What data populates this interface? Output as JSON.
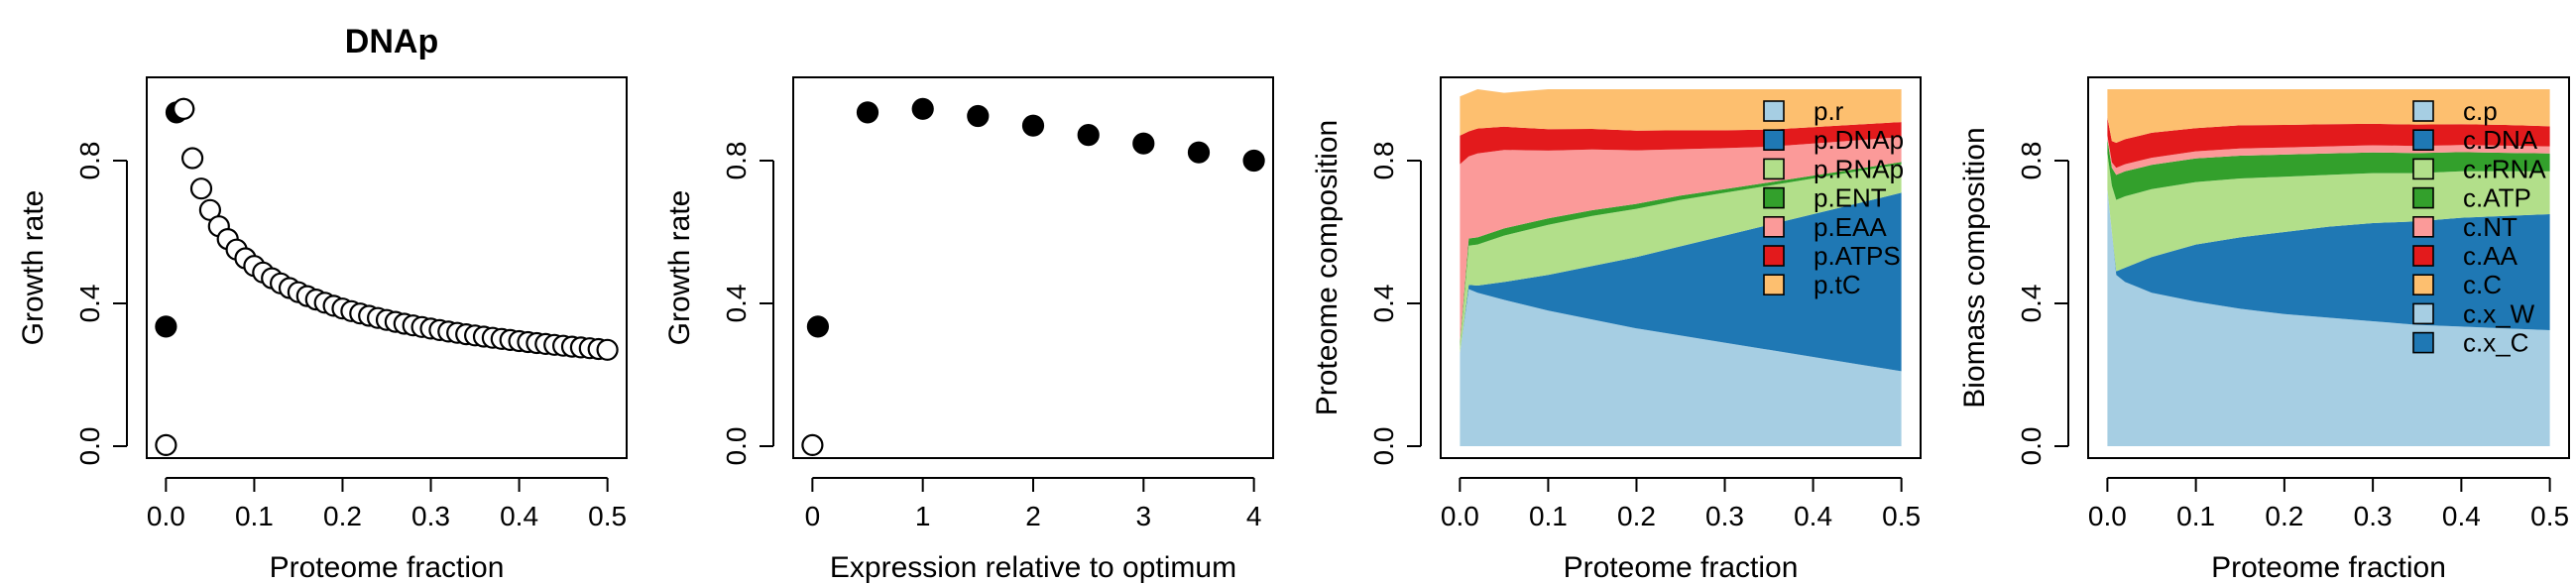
{
  "figure_title": "DNAp",
  "chart_data": [
    {
      "type": "scatter",
      "xlabel": "Proteome fraction",
      "ylabel": "Growth rate",
      "xlim": [
        0,
        0.5
      ],
      "ylim": [
        0,
        1
      ],
      "xticks": [
        "0.0",
        "0.1",
        "0.2",
        "0.3",
        "0.4",
        "0.5"
      ],
      "yticks": [
        "0.0",
        "0.4",
        "0.8"
      ],
      "series": [
        {
          "marker": "filled",
          "points": [
            [
              0.0,
              0.335
            ],
            [
              0.012,
              0.935
            ],
            [
              0.02,
              0.945
            ]
          ]
        },
        {
          "marker": "open",
          "points": [
            [
              0.0,
              0.003
            ]
          ]
        },
        {
          "marker": "open-curve",
          "x_from": 0.02,
          "x_to": 0.5,
          "count": 49,
          "y_start": 0.945,
          "y_end": 0.27
        }
      ]
    },
    {
      "type": "scatter",
      "xlabel": "Expression relative to optimum",
      "ylabel": "Growth rate",
      "xlim": [
        0,
        4
      ],
      "ylim": [
        0,
        1
      ],
      "xticks": [
        "0",
        "1",
        "2",
        "3",
        "4"
      ],
      "yticks": [
        "0.0",
        "0.4",
        "0.8"
      ],
      "series": [
        {
          "marker": "filled",
          "points": [
            [
              0.05,
              0.335
            ],
            [
              0.5,
              0.935
            ],
            [
              1.0,
              0.945
            ],
            [
              1.5,
              0.925
            ],
            [
              2.0,
              0.898
            ],
            [
              2.5,
              0.872
            ],
            [
              3.0,
              0.848
            ],
            [
              3.5,
              0.823
            ],
            [
              4.0,
              0.8
            ]
          ]
        },
        {
          "marker": "open",
          "points": [
            [
              0.0,
              0.003
            ]
          ]
        }
      ]
    },
    {
      "type": "area",
      "xlabel": "Proteome fraction",
      "ylabel": "Proteome composition",
      "xlim": [
        0,
        0.5
      ],
      "ylim": [
        0,
        1
      ],
      "xticks": [
        "0.0",
        "0.1",
        "0.2",
        "0.3",
        "0.4",
        "0.5"
      ],
      "yticks": [
        "0.0",
        "0.4",
        "0.8"
      ],
      "x": [
        0,
        0.01,
        0.02,
        0.05,
        0.1,
        0.15,
        0.2,
        0.25,
        0.3,
        0.35,
        0.4,
        0.45,
        0.5
      ],
      "series": [
        {
          "name": "p.r",
          "color": "#a6cee3",
          "values": [
            0.26,
            0.44,
            0.43,
            0.41,
            0.38,
            0.355,
            0.33,
            0.31,
            0.29,
            0.27,
            0.25,
            0.23,
            0.21
          ]
        },
        {
          "name": "p.DNAp",
          "color": "#1f78b4",
          "values": [
            0,
            0.012,
            0.02,
            0.05,
            0.1,
            0.15,
            0.2,
            0.25,
            0.3,
            0.35,
            0.4,
            0.45,
            0.5
          ]
        },
        {
          "name": "p.RNAp",
          "color": "#b2df8a",
          "values": [
            0.02,
            0.11,
            0.115,
            0.13,
            0.14,
            0.14,
            0.135,
            0.13,
            0.12,
            0.11,
            0.1,
            0.09,
            0.08
          ]
        },
        {
          "name": "p.ENT",
          "color": "#33a02c",
          "values": [
            0.01,
            0.02,
            0.02,
            0.02,
            0.018,
            0.016,
            0.014,
            0.012,
            0.01,
            0.009,
            0.008,
            0.007,
            0.006
          ]
        },
        {
          "name": "p.EAA",
          "color": "#fb9a99",
          "values": [
            0.5,
            0.23,
            0.235,
            0.22,
            0.19,
            0.17,
            0.15,
            0.13,
            0.115,
            0.1,
            0.09,
            0.08,
            0.07
          ]
        },
        {
          "name": "p.ATPS",
          "color": "#e31a1c",
          "values": [
            0.08,
            0.07,
            0.07,
            0.065,
            0.06,
            0.058,
            0.055,
            0.053,
            0.05,
            0.048,
            0.046,
            0.044,
            0.042
          ]
        },
        {
          "name": "p.tC",
          "color": "#fdbf6f",
          "values": [
            0.11,
            0.108,
            0.11,
            0.095,
            0.112,
            0.111,
            0.116,
            0.115,
            0.115,
            0.113,
            0.106,
            0.099,
            0.092
          ]
        }
      ]
    },
    {
      "type": "area",
      "xlabel": "Proteome fraction",
      "ylabel": "Biomass composition",
      "xlim": [
        0,
        0.5
      ],
      "ylim": [
        0,
        1
      ],
      "xticks": [
        "0.0",
        "0.1",
        "0.2",
        "0.3",
        "0.4",
        "0.5"
      ],
      "yticks": [
        "0.0",
        "0.4",
        "0.8"
      ],
      "x": [
        0,
        0.005,
        0.01,
        0.02,
        0.05,
        0.1,
        0.15,
        0.2,
        0.25,
        0.3,
        0.35,
        0.4,
        0.45,
        0.5
      ],
      "series": [
        {
          "name": "c.p",
          "color": "#a6cee3",
          "values": [
            0.72,
            0.6,
            0.48,
            0.46,
            0.43,
            0.405,
            0.385,
            0.37,
            0.36,
            0.35,
            0.34,
            0.335,
            0.33,
            0.325
          ]
        },
        {
          "name": "c.DNA",
          "color": "#1f78b4",
          "values": [
            0,
            0.0,
            0.01,
            0.04,
            0.1,
            0.16,
            0.2,
            0.23,
            0.255,
            0.275,
            0.29,
            0.305,
            0.315,
            0.325
          ]
        },
        {
          "name": "c.rRNA",
          "color": "#b2df8a",
          "values": [
            0.1,
            0.13,
            0.2,
            0.2,
            0.19,
            0.175,
            0.165,
            0.155,
            0.145,
            0.14,
            0.135,
            0.13,
            0.125,
            0.12
          ]
        },
        {
          "name": "c.ATP",
          "color": "#33a02c",
          "values": [
            0.04,
            0.05,
            0.07,
            0.07,
            0.068,
            0.066,
            0.064,
            0.062,
            0.06,
            0.058,
            0.056,
            0.054,
            0.052,
            0.05
          ]
        },
        {
          "name": "c.NT",
          "color": "#fb9a99",
          "values": [
            0.01,
            0.015,
            0.02,
            0.02,
            0.02,
            0.02,
            0.02,
            0.02,
            0.02,
            0.02,
            0.02,
            0.02,
            0.02,
            0.02
          ]
        },
        {
          "name": "c.AA",
          "color": "#e31a1c",
          "values": [
            0.05,
            0.06,
            0.07,
            0.07,
            0.07,
            0.065,
            0.065,
            0.063,
            0.062,
            0.06,
            0.06,
            0.058,
            0.058,
            0.056
          ]
        },
        {
          "name": "c.C",
          "color": "#fdbf6f",
          "values": [
            0.08,
            0.145,
            0.15,
            0.14,
            0.122,
            0.109,
            0.101,
            0.1,
            0.098,
            0.097,
            0.099,
            0.098,
            0.1,
            0.104
          ]
        },
        {
          "name": "c.x_W",
          "color": "#a6cee3",
          "values": [
            0,
            0,
            0,
            0,
            0,
            0,
            0,
            0,
            0,
            0,
            0,
            0,
            0,
            0
          ]
        },
        {
          "name": "c.x_C",
          "color": "#1f78b4",
          "values": [
            0,
            0,
            0,
            0,
            0,
            0,
            0,
            0,
            0,
            0,
            0,
            0,
            0,
            0
          ]
        }
      ]
    }
  ]
}
